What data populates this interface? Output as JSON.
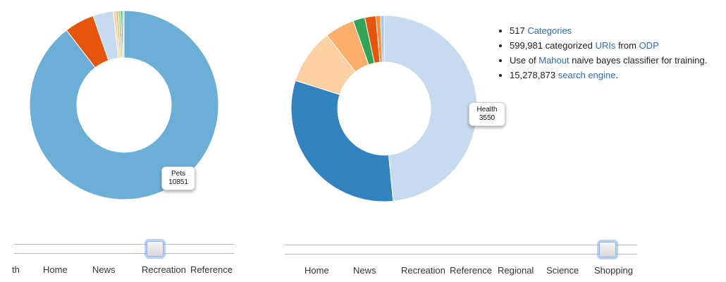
{
  "chart_data": [
    {
      "type": "pie",
      "donut": true,
      "slices": [
        {
          "name": "Pets",
          "value": 10851,
          "color": "#6baed6"
        },
        {
          "value": 620,
          "color": "#e6550d"
        },
        {
          "value": 420,
          "color": "#c6dbef"
        },
        {
          "value": 60,
          "color": "#fdd0a2"
        },
        {
          "value": 45,
          "color": "#fdae6b"
        },
        {
          "value": 55,
          "color": "#a1d99b"
        },
        {
          "value": 35,
          "color": "#31a354"
        },
        {
          "value": 30,
          "color": "#9ecae1"
        }
      ],
      "tooltip": {
        "label": "Pets",
        "value": "10851"
      }
    },
    {
      "type": "pie",
      "donut": true,
      "slices": [
        {
          "name": "Health",
          "value": 3550,
          "color": "#c6dbef"
        },
        {
          "value": 2300,
          "color": "#3182bd"
        },
        {
          "value": 700,
          "color": "#fdd0a2"
        },
        {
          "value": 380,
          "color": "#fdae6b"
        },
        {
          "value": 150,
          "color": "#31a354"
        },
        {
          "value": 140,
          "color": "#e6550d"
        },
        {
          "value": 60,
          "color": "#fd8d3c"
        },
        {
          "value": 45,
          "color": "#9ecae1"
        }
      ],
      "tooltip": {
        "label": "Health",
        "value": "3550"
      }
    }
  ],
  "slider_left": {
    "ticks": [
      "th",
      "Home",
      "News",
      "Recreation",
      "Reference"
    ],
    "selected": "Recreation"
  },
  "slider_right": {
    "ticks": [
      "Home",
      "News",
      "Recreation",
      "Reference",
      "Regional",
      "Science",
      "Shopping"
    ],
    "selected": "Shopping"
  },
  "info": {
    "line1": {
      "prefix": "517 ",
      "link": "Categories"
    },
    "line2": {
      "prefix": "599,981 categorized ",
      "link1": "URIs",
      "middle": " from ",
      "link2": "ODP"
    },
    "line3": {
      "prefix": "Use of ",
      "link": "Mahout",
      "suffix": " naive bayes classifier for training."
    },
    "line4": {
      "prefix": "15,278,873 ",
      "link": "search engine",
      "suffix": "."
    }
  }
}
